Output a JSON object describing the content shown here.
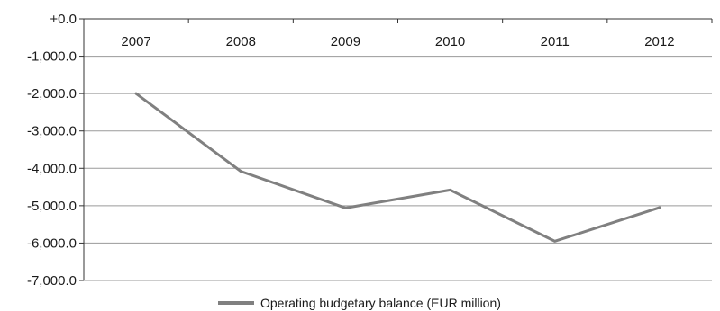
{
  "chart_data": {
    "type": "line",
    "categories": [
      "2007",
      "2008",
      "2009",
      "2010",
      "2011",
      "2012"
    ],
    "series": [
      {
        "name": "Operating budgetary balance (EUR million)",
        "values": [
          -2000,
          -4080,
          -5060,
          -4580,
          -5950,
          -5050
        ],
        "color": "#808080"
      }
    ],
    "ylim": [
      -7000,
      0
    ],
    "yticks": [
      0,
      -1000,
      -2000,
      -3000,
      -4000,
      -5000,
      -6000,
      -7000
    ],
    "ytick_labels": [
      "+0.0",
      "-1,000.0",
      "-2,000.0",
      "-3,000.0",
      "-4,000.0",
      "-5,000.0",
      "-6,000.0",
      "-7,000.0"
    ],
    "x_labels_position": "top",
    "grid": "horizontal",
    "legend_position": "bottom-center",
    "title": "",
    "xlabel": "",
    "ylabel": ""
  }
}
